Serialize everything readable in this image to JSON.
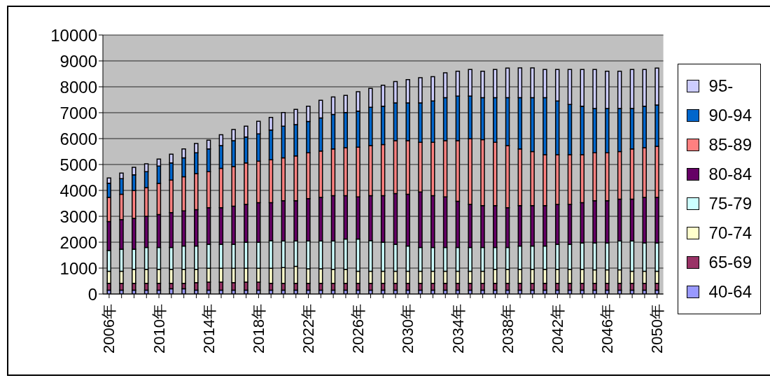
{
  "chart_data": {
    "type": "bar",
    "stacked": true,
    "categories": [
      "2006年",
      null,
      null,
      null,
      "2010年",
      null,
      null,
      null,
      "2014年",
      null,
      null,
      null,
      "2018年",
      null,
      null,
      null,
      "2022年",
      null,
      null,
      null,
      "2026年",
      null,
      null,
      null,
      "2030年",
      null,
      null,
      null,
      "2034年",
      null,
      null,
      null,
      "2038年",
      null,
      null,
      null,
      "2042年",
      null,
      null,
      null,
      "2046年",
      null,
      null,
      null,
      "2050年"
    ],
    "ylim": [
      0,
      10000
    ],
    "yticks": [
      0,
      1000,
      2000,
      3000,
      4000,
      5000,
      6000,
      7000,
      8000,
      9000,
      10000
    ],
    "grid": "y",
    "legend": "right",
    "series": [
      {
        "name": "40-64",
        "color": "#9999ff",
        "values": [
          150,
          150,
          150,
          150,
          150,
          200,
          200,
          150,
          150,
          150,
          150,
          150,
          150,
          150,
          150,
          150,
          150,
          150,
          150,
          150,
          150,
          150,
          150,
          150,
          150,
          150,
          150,
          150,
          150,
          150,
          150,
          150,
          150,
          150,
          150,
          150,
          150,
          150,
          150,
          150,
          150,
          150,
          150,
          150,
          150
        ]
      },
      {
        "name": "65-69",
        "color": "#993366",
        "values": [
          260,
          260,
          260,
          260,
          260,
          210,
          210,
          290,
          310,
          310,
          290,
          310,
          310,
          260,
          260,
          260,
          260,
          260,
          260,
          260,
          260,
          260,
          260,
          260,
          260,
          260,
          260,
          260,
          260,
          260,
          260,
          260,
          260,
          260,
          260,
          260,
          260,
          260,
          260,
          260,
          260,
          260,
          260,
          260,
          260
        ]
      },
      {
        "name": "70-74",
        "color": "#ffffcc",
        "values": [
          470,
          470,
          540,
          540,
          540,
          540,
          540,
          510,
          530,
          530,
          550,
          530,
          530,
          580,
          610,
          660,
          560,
          560,
          540,
          540,
          470,
          470,
          470,
          470,
          470,
          470,
          470,
          470,
          470,
          470,
          470,
          540,
          540,
          540,
          540,
          540,
          540,
          540,
          540,
          520,
          520,
          520,
          470,
          470,
          470
        ]
      },
      {
        "name": "75-79",
        "color": "#ccffff",
        "values": [
          800,
          850,
          780,
          850,
          850,
          850,
          900,
          900,
          930,
          930,
          930,
          1010,
          1010,
          1070,
          1030,
          980,
          1080,
          1080,
          1100,
          1170,
          1240,
          1180,
          1120,
          1040,
          970,
          920,
          920,
          920,
          920,
          920,
          920,
          850,
          850,
          900,
          900,
          900,
          970,
          970,
          1020,
          1040,
          1040,
          1120,
          1170,
          1090,
          1090
        ]
      },
      {
        "name": "80-84",
        "color": "#660066",
        "values": [
          1120,
          1140,
          1190,
          1200,
          1270,
          1340,
          1360,
          1410,
          1410,
          1410,
          1470,
          1460,
          1530,
          1470,
          1550,
          1550,
          1630,
          1680,
          1750,
          1680,
          1630,
          1740,
          1800,
          1960,
          2000,
          2140,
          2000,
          1950,
          1780,
          1660,
          1610,
          1610,
          1530,
          1560,
          1560,
          1560,
          1540,
          1540,
          1560,
          1630,
          1630,
          1610,
          1610,
          1760,
          1760
        ]
      },
      {
        "name": "85-89",
        "color": "#ff8080",
        "values": [
          930,
          980,
          1070,
          1110,
          1200,
          1260,
          1320,
          1390,
          1390,
          1520,
          1530,
          1600,
          1600,
          1650,
          1660,
          1730,
          1770,
          1790,
          1800,
          1850,
          1920,
          1930,
          1970,
          2040,
          2070,
          1920,
          2060,
          2170,
          2340,
          2530,
          2550,
          2450,
          2400,
          2190,
          2090,
          1970,
          1920,
          1920,
          1850,
          1850,
          1850,
          1840,
          1940,
          1920,
          1970
        ]
      },
      {
        "name": "90-94",
        "color": "#0066cc",
        "values": [
          550,
          600,
          610,
          610,
          670,
          660,
          730,
          800,
          880,
          880,
          1000,
          1000,
          1050,
          1150,
          1220,
          1210,
          1210,
          1280,
          1330,
          1360,
          1390,
          1480,
          1480,
          1460,
          1460,
          1520,
          1590,
          1660,
          1720,
          1650,
          1620,
          1720,
          1850,
          1980,
          2080,
          2200,
          2070,
          1940,
          1870,
          1710,
          1710,
          1660,
          1560,
          1600,
          1600
        ]
      },
      {
        "name": "95-",
        "color": "#ccccff",
        "values": [
          200,
          220,
          290,
          310,
          270,
          340,
          340,
          360,
          340,
          420,
          430,
          420,
          490,
          490,
          530,
          590,
          590,
          680,
          680,
          660,
          750,
          730,
          810,
          820,
          900,
          970,
          940,
          960,
          960,
          1030,
          1020,
          1090,
          1140,
          1150,
          1150,
          1090,
          1220,
          1350,
          1420,
          1510,
          1440,
          1440,
          1510,
          1420,
          1420
        ]
      }
    ]
  }
}
